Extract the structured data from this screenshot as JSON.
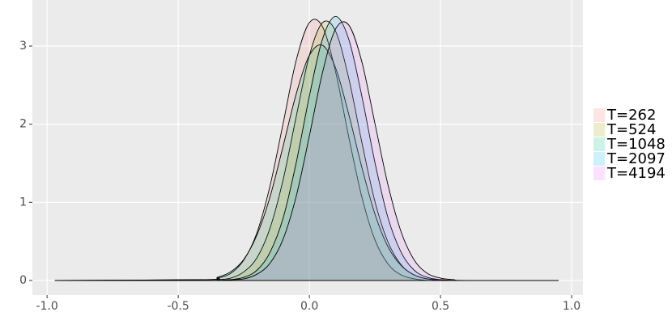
{
  "chart_data": {
    "type": "density",
    "x": [
      -0.97,
      -0.4,
      -0.35,
      -0.3,
      -0.25,
      -0.2,
      -0.15,
      -0.1,
      -0.05,
      0,
      0.05,
      0.1,
      0.15,
      0.2,
      0.25,
      0.3,
      0.35,
      0.4,
      0.45,
      0.5,
      0.55,
      0.6,
      0.95
    ],
    "series": [
      {
        "name": "T=262",
        "color": "#F8766D",
        "values": [
          0,
          0.01,
          0.03,
          0.09,
          0.26,
          0.61,
          1.21,
          2.01,
          2.82,
          3.3,
          3.25,
          2.67,
          1.84,
          1.07,
          0.52,
          0.21,
          0.07,
          0.02,
          0,
          0,
          0,
          0,
          0
        ]
      },
      {
        "name": "T=524",
        "color": "#A3A500",
        "values": [
          0,
          0,
          0.01,
          0.03,
          0.11,
          0.29,
          0.67,
          1.29,
          2.1,
          2.88,
          3.3,
          3.19,
          2.59,
          1.77,
          1.01,
          0.49,
          0.2,
          0.07,
          0.02,
          0,
          0,
          0,
          0
        ]
      },
      {
        "name": "T=1048",
        "color": "#00BF7D",
        "values": [
          0,
          0.01,
          0.04,
          0.11,
          0.27,
          0.58,
          1.07,
          1.72,
          2.39,
          2.88,
          3.01,
          2.72,
          2.13,
          1.45,
          0.85,
          0.43,
          0.19,
          0.07,
          0.02,
          0.01,
          0,
          0,
          0
        ]
      },
      {
        "name": "T=2097",
        "color": "#00B0F6",
        "values": [
          0,
          0,
          0,
          0.01,
          0.04,
          0.13,
          0.36,
          0.8,
          1.51,
          2.36,
          3.09,
          3.38,
          3.09,
          2.36,
          1.51,
          0.8,
          0.36,
          0.13,
          0.04,
          0.01,
          0,
          0,
          0
        ]
      },
      {
        "name": "T=4194",
        "color": "#E76BF3",
        "values": [
          0,
          0,
          0,
          0.01,
          0.02,
          0.08,
          0.22,
          0.53,
          1.08,
          1.85,
          2.66,
          3.22,
          3.27,
          2.8,
          2.01,
          1.22,
          0.62,
          0.26,
          0.09,
          0.03,
          0.01,
          0,
          0
        ]
      }
    ],
    "xlim": [
      -1.056,
      1.043
    ],
    "ylim": [
      -0.187,
      3.59
    ],
    "xticks": [
      {
        "value": -1,
        "label": "-1.0"
      },
      {
        "value": -0.5,
        "label": "-0.5"
      },
      {
        "value": 0,
        "label": "0.0"
      },
      {
        "value": 0.5,
        "label": "0.5"
      },
      {
        "value": 1,
        "label": "1.0"
      }
    ],
    "yticks": [
      0,
      1,
      2,
      3
    ],
    "grid": true,
    "legend": "right",
    "fill_opacity": 0.15
  }
}
